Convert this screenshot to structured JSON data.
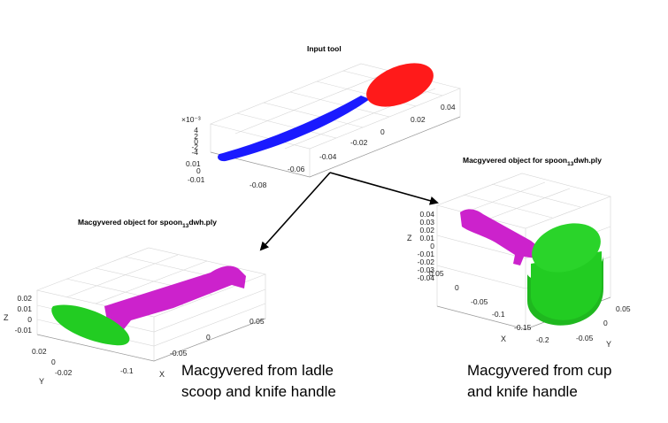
{
  "colors": {
    "scoop": "#ff1a1a",
    "handle_blue": "#1a1aff",
    "handle_magenta": "#cc22cc",
    "part_green": "#22cc22",
    "arrow": "#000000"
  },
  "input_plot": {
    "title": "Input tool",
    "exponent": "×10⁻³",
    "z_ticks": [
      "4",
      "2",
      "0",
      "-2",
      "-4"
    ],
    "y_ticks": [
      "0.01",
      "0",
      "-0.01"
    ],
    "x_ticks": [
      "-0.08",
      "-0.06",
      "-0.04",
      "-0.02",
      "0",
      "0.02",
      "0.04"
    ]
  },
  "left_plot": {
    "title_prefix": "Macgyvered object for spoon",
    "title_sub": "13",
    "title_suffix": "dwh.ply",
    "z_ticks": [
      "0.02",
      "0.01",
      "0",
      "-0.01"
    ],
    "y_ticks": [
      "0.02",
      "0",
      "-0.02"
    ],
    "x_ticks": [
      "-0.1",
      "-0.05",
      "0",
      "0.05"
    ],
    "x_label": "X",
    "y_label": "Y",
    "z_label": "Z"
  },
  "right_plot": {
    "title_prefix": "Macgyvered object for spoon",
    "title_sub": "13",
    "title_suffix": "dwh.ply",
    "z_ticks": [
      "0.04",
      "0.03",
      "0.02",
      "0.01",
      "0",
      "-0.01",
      "-0.02",
      "-0.03",
      "-0.04"
    ],
    "y_ticks": [
      "0.05",
      "0",
      "-0.05"
    ],
    "x_ticks": [
      "0.05",
      "0",
      "-0.05",
      "-0.1",
      "-0.15",
      "-0.2"
    ],
    "x_label": "X",
    "y_label": "Y",
    "z_label": "Z"
  },
  "captions": {
    "left_line1": "Macgyvered from ladle",
    "left_line2": "scoop and knife handle",
    "right_line1": "Macgyvered from cup",
    "right_line2": "and knife handle"
  }
}
